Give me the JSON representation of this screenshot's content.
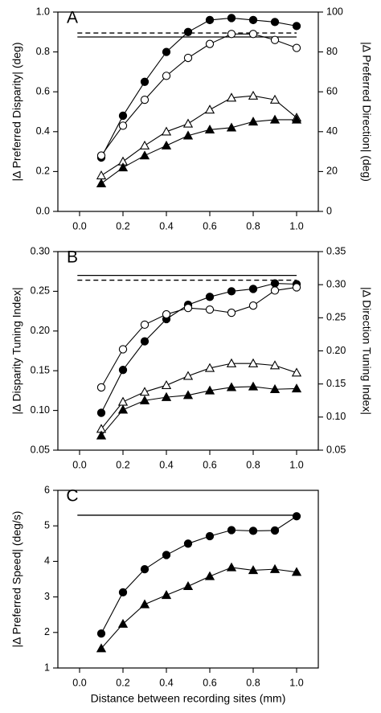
{
  "chart_data": [
    {
      "panel": "A",
      "type": "line",
      "ylabel_left": "|Δ Preferred Disparity| (deg)",
      "ylabel_right": "|Δ Preferred Direction| (deg)",
      "xlim": [
        -0.1,
        1.1
      ],
      "xticks": [
        "0.0",
        "0.2",
        "0.4",
        "0.6",
        "0.8",
        "1.0"
      ],
      "ylim_left": [
        0,
        1.0
      ],
      "yticks_left": [
        "0.0",
        "0.2",
        "0.4",
        "0.6",
        "0.8",
        "1.0"
      ],
      "ylim_right": [
        0,
        100
      ],
      "yticks_right": [
        "0",
        "20",
        "40",
        "60",
        "80",
        "100"
      ],
      "x": [
        0.1,
        0.2,
        0.3,
        0.4,
        0.5,
        0.6,
        0.7,
        0.8,
        0.9,
        1.0
      ],
      "series": [
        {
          "marker": "filled-circle",
          "axis": "left",
          "values": [
            0.27,
            0.48,
            0.65,
            0.8,
            0.9,
            0.96,
            0.97,
            0.96,
            0.95,
            0.93
          ]
        },
        {
          "marker": "open-circle",
          "axis": "left",
          "values": [
            0.28,
            0.43,
            0.56,
            0.68,
            0.77,
            0.84,
            0.89,
            0.89,
            0.86,
            0.82
          ]
        },
        {
          "marker": "open-triangle",
          "axis": "right",
          "values": [
            18,
            25,
            33,
            40,
            44,
            51,
            57,
            58,
            56,
            47
          ]
        },
        {
          "marker": "filled-triangle",
          "axis": "right",
          "values": [
            14,
            22,
            28,
            33,
            38,
            41,
            42,
            45,
            46,
            46
          ]
        }
      ],
      "reference_lines": [
        {
          "style": "solid",
          "axis": "left",
          "value": 0.875
        },
        {
          "style": "dashed",
          "axis": "left",
          "value": 0.895
        }
      ]
    },
    {
      "panel": "B",
      "type": "line",
      "ylabel_left": "|Δ Disparity Tuning Index|",
      "ylabel_right": "|Δ Direction Tuning Index|",
      "xlim": [
        -0.1,
        1.1
      ],
      "xticks": [
        "0.0",
        "0.2",
        "0.4",
        "0.6",
        "0.8",
        "1.0"
      ],
      "ylim_left": [
        0.05,
        0.3
      ],
      "yticks_left": [
        "0.05",
        "0.10",
        "0.15",
        "0.20",
        "0.25",
        "0.30"
      ],
      "ylim_right": [
        0.05,
        0.35
      ],
      "yticks_right": [
        "0.05",
        "0.10",
        "0.15",
        "0.20",
        "0.25",
        "0.30",
        "0.35"
      ],
      "x": [
        0.1,
        0.2,
        0.3,
        0.4,
        0.5,
        0.6,
        0.7,
        0.8,
        0.9,
        1.0
      ],
      "series": [
        {
          "marker": "filled-circle",
          "axis": "left",
          "values": [
            0.097,
            0.151,
            0.187,
            0.215,
            0.233,
            0.243,
            0.25,
            0.253,
            0.26,
            0.259
          ]
        },
        {
          "marker": "open-circle",
          "axis": "left",
          "values": [
            0.129,
            0.177,
            0.208,
            0.221,
            0.229,
            0.227,
            0.223,
            0.232,
            0.251,
            0.255
          ]
        },
        {
          "marker": "open-triangle",
          "axis": "right",
          "values": [
            0.082,
            0.123,
            0.138,
            0.148,
            0.162,
            0.174,
            0.181,
            0.181,
            0.178,
            0.167
          ]
        },
        {
          "marker": "filled-triangle",
          "axis": "right",
          "values": [
            0.072,
            0.111,
            0.125,
            0.13,
            0.133,
            0.14,
            0.145,
            0.146,
            0.142,
            0.143
          ]
        }
      ],
      "reference_lines": [
        {
          "style": "solid",
          "axis": "left",
          "value": 0.27
        },
        {
          "style": "dashed",
          "axis": "left",
          "value": 0.264
        }
      ]
    },
    {
      "panel": "C",
      "type": "line",
      "ylabel_left": "|Δ Preferred Speed| (deg/s)",
      "xlabel": "Distance between recording sites (mm)",
      "xlim": [
        -0.1,
        1.1
      ],
      "xticks": [
        "0.0",
        "0.2",
        "0.4",
        "0.6",
        "0.8",
        "1.0"
      ],
      "ylim_left": [
        1,
        6
      ],
      "yticks_left": [
        "1",
        "2",
        "3",
        "4",
        "5",
        "6"
      ],
      "x": [
        0.1,
        0.2,
        0.3,
        0.4,
        0.5,
        0.6,
        0.7,
        0.8,
        0.9,
        1.0
      ],
      "series": [
        {
          "marker": "filled-circle",
          "axis": "left",
          "values": [
            1.97,
            3.13,
            3.78,
            4.18,
            4.5,
            4.71,
            4.88,
            4.86,
            4.87,
            5.27
          ]
        },
        {
          "marker": "filled-triangle",
          "axis": "left",
          "values": [
            1.55,
            2.24,
            2.79,
            3.05,
            3.3,
            3.58,
            3.83,
            3.75,
            3.78,
            3.7
          ]
        }
      ],
      "reference_lines": [
        {
          "style": "solid",
          "axis": "left",
          "value": 5.3
        }
      ]
    }
  ]
}
